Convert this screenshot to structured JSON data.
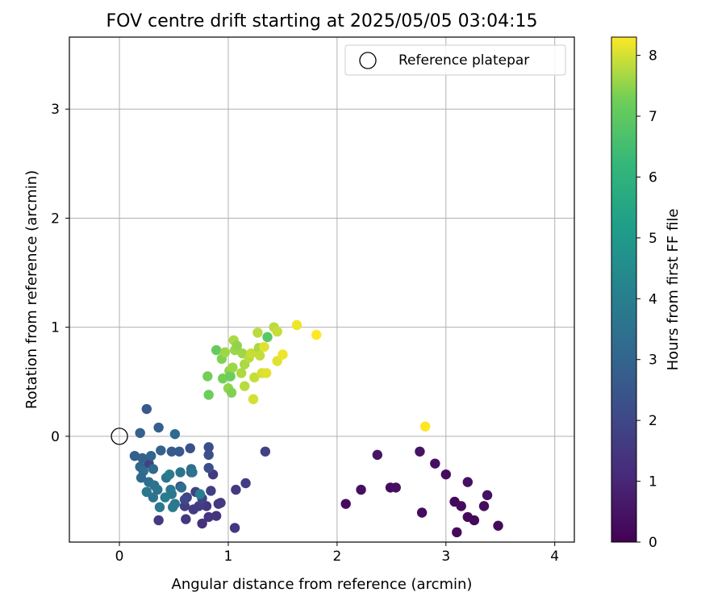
{
  "chart_data": {
    "type": "scatter",
    "title": "FOV centre drift starting at 2025/05/05 03:04:15",
    "xlabel": "Angular distance from reference (arcmin)",
    "ylabel": "Rotation from reference (arcmin)",
    "xlim": [
      -0.46,
      4.18
    ],
    "ylim": [
      -0.97,
      3.66
    ],
    "xticks": [
      "0",
      "1",
      "2",
      "3",
      "4"
    ],
    "yticks": [
      "0",
      "1",
      "2",
      "3"
    ],
    "grid": true,
    "legend": {
      "position": "top-right",
      "entries": [
        "Reference platepar"
      ]
    },
    "reference_point": {
      "x": 0,
      "y": 0
    },
    "colorbar": {
      "label": "Hours from first FF file",
      "range": [
        0,
        8.3
      ],
      "ticks": [
        "0",
        "1",
        "2",
        "3",
        "4",
        "5",
        "6",
        "7",
        "8"
      ],
      "colormap": "viridis"
    },
    "series": [
      {
        "points": [
          {
            "x": 2.08,
            "y": -0.62,
            "c": 0.3
          },
          {
            "x": 2.22,
            "y": -0.49,
            "c": 0.4
          },
          {
            "x": 2.37,
            "y": -0.17,
            "c": 0.5
          },
          {
            "x": 2.49,
            "y": -0.47,
            "c": 0.3
          },
          {
            "x": 2.54,
            "y": -0.47,
            "c": 0.4
          },
          {
            "x": 2.76,
            "y": -0.14,
            "c": 0.5
          },
          {
            "x": 2.78,
            "y": -0.7,
            "c": 0.3
          },
          {
            "x": 2.9,
            "y": -0.25,
            "c": 0.4
          },
          {
            "x": 3.0,
            "y": -0.35,
            "c": 0.3
          },
          {
            "x": 3.08,
            "y": -0.6,
            "c": 0.2
          },
          {
            "x": 3.1,
            "y": -0.88,
            "c": 0.2
          },
          {
            "x": 3.14,
            "y": -0.64,
            "c": 0.3
          },
          {
            "x": 3.2,
            "y": -0.42,
            "c": 0.4
          },
          {
            "x": 3.2,
            "y": -0.74,
            "c": 0.2
          },
          {
            "x": 3.26,
            "y": -0.77,
            "c": 0.2
          },
          {
            "x": 3.35,
            "y": -0.64,
            "c": 0.3
          },
          {
            "x": 3.38,
            "y": -0.54,
            "c": 0.4
          },
          {
            "x": 3.48,
            "y": -0.82,
            "c": 0.2
          },
          {
            "x": 1.34,
            "y": -0.14,
            "c": 1.8
          },
          {
            "x": 1.06,
            "y": -0.84,
            "c": 1.5
          },
          {
            "x": 1.07,
            "y": -0.49,
            "c": 1.6
          },
          {
            "x": 1.16,
            "y": -0.43,
            "c": 1.7
          },
          {
            "x": 0.91,
            "y": -0.62,
            "c": 1.5
          },
          {
            "x": 0.93,
            "y": -0.61,
            "c": 1.6
          },
          {
            "x": 0.89,
            "y": -0.73,
            "c": 1.4
          },
          {
            "x": 0.86,
            "y": -0.35,
            "c": 1.6
          },
          {
            "x": 0.84,
            "y": -0.5,
            "c": 1.7
          },
          {
            "x": 0.82,
            "y": -0.74,
            "c": 1.4
          },
          {
            "x": 0.8,
            "y": -0.64,
            "c": 1.5
          },
          {
            "x": 0.76,
            "y": -0.8,
            "c": 1.3
          },
          {
            "x": 0.73,
            "y": -0.64,
            "c": 1.7
          },
          {
            "x": 0.7,
            "y": -0.51,
            "c": 1.8
          },
          {
            "x": 0.68,
            "y": -0.67,
            "c": 1.6
          },
          {
            "x": 0.66,
            "y": -0.33,
            "c": 2.0
          },
          {
            "x": 0.65,
            "y": -0.11,
            "c": 2.3
          },
          {
            "x": 0.62,
            "y": -0.56,
            "c": 1.9
          },
          {
            "x": 0.61,
            "y": -0.76,
            "c": 1.5
          },
          {
            "x": 0.6,
            "y": -0.64,
            "c": 1.7
          },
          {
            "x": 0.56,
            "y": -0.46,
            "c": 2.0
          },
          {
            "x": 0.36,
            "y": -0.77,
            "c": 1.6
          },
          {
            "x": 0.27,
            "y": -0.25,
            "c": 1.8
          },
          {
            "x": 0.82,
            "y": -0.1,
            "c": 2.2
          },
          {
            "x": 0.82,
            "y": -0.17,
            "c": 2.3
          },
          {
            "x": 0.82,
            "y": -0.29,
            "c": 2.2
          },
          {
            "x": 0.76,
            "y": -0.57,
            "c": 1.9
          },
          {
            "x": 0.6,
            "y": -0.58,
            "c": 2.0
          },
          {
            "x": 0.25,
            "y": 0.25,
            "c": 2.6
          },
          {
            "x": 0.36,
            "y": 0.08,
            "c": 2.8
          },
          {
            "x": 0.19,
            "y": 0.03,
            "c": 2.9
          },
          {
            "x": 0.51,
            "y": 0.02,
            "c": 3.2
          },
          {
            "x": 0.38,
            "y": -0.13,
            "c": 2.9
          },
          {
            "x": 0.48,
            "y": -0.14,
            "c": 2.7
          },
          {
            "x": 0.55,
            "y": -0.14,
            "c": 2.6
          },
          {
            "x": 0.14,
            "y": -0.18,
            "c": 2.8
          },
          {
            "x": 0.21,
            "y": -0.2,
            "c": 2.9
          },
          {
            "x": 0.29,
            "y": -0.18,
            "c": 3.0
          },
          {
            "x": 0.19,
            "y": -0.28,
            "c": 3.0
          },
          {
            "x": 0.22,
            "y": -0.32,
            "c": 3.3
          },
          {
            "x": 0.31,
            "y": -0.3,
            "c": 3.1
          },
          {
            "x": 0.2,
            "y": -0.38,
            "c": 3.2
          },
          {
            "x": 0.27,
            "y": -0.42,
            "c": 3.4
          },
          {
            "x": 0.32,
            "y": -0.45,
            "c": 3.5
          },
          {
            "x": 0.25,
            "y": -0.51,
            "c": 3.7
          },
          {
            "x": 0.31,
            "y": -0.56,
            "c": 3.6
          },
          {
            "x": 0.37,
            "y": -0.65,
            "c": 3.8
          },
          {
            "x": 0.43,
            "y": -0.38,
            "c": 3.6
          },
          {
            "x": 0.46,
            "y": -0.35,
            "c": 3.9
          },
          {
            "x": 0.47,
            "y": -0.49,
            "c": 3.8
          },
          {
            "x": 0.48,
            "y": -0.53,
            "c": 3.7
          },
          {
            "x": 0.49,
            "y": -0.65,
            "c": 3.9
          },
          {
            "x": 0.51,
            "y": -0.62,
            "c": 3.8
          },
          {
            "x": 0.56,
            "y": -0.33,
            "c": 3.6
          },
          {
            "x": 0.66,
            "y": -0.3,
            "c": 3.4
          },
          {
            "x": 0.74,
            "y": -0.53,
            "c": 4.0
          },
          {
            "x": 0.67,
            "y": -0.33,
            "c": 3.5
          },
          {
            "x": 0.57,
            "y": -0.47,
            "c": 3.3
          },
          {
            "x": 0.42,
            "y": -0.56,
            "c": 3.9
          },
          {
            "x": 0.35,
            "y": -0.49,
            "c": 3.6
          },
          {
            "x": 0.82,
            "y": 0.38,
            "c": 7.2
          },
          {
            "x": 0.81,
            "y": 0.55,
            "c": 7.3
          },
          {
            "x": 0.89,
            "y": 0.79,
            "c": 7.1
          },
          {
            "x": 0.95,
            "y": 0.53,
            "c": 7.3
          },
          {
            "x": 0.94,
            "y": 0.71,
            "c": 7.4
          },
          {
            "x": 0.97,
            "y": 0.77,
            "c": 7.6
          },
          {
            "x": 1.0,
            "y": 0.44,
            "c": 7.5
          },
          {
            "x": 1.01,
            "y": 0.6,
            "c": 7.5
          },
          {
            "x": 1.02,
            "y": 0.55,
            "c": 7.2
          },
          {
            "x": 1.03,
            "y": 0.4,
            "c": 7.4
          },
          {
            "x": 1.04,
            "y": 0.63,
            "c": 7.6
          },
          {
            "x": 1.05,
            "y": 0.88,
            "c": 7.7
          },
          {
            "x": 1.06,
            "y": 0.79,
            "c": 7.6
          },
          {
            "x": 1.08,
            "y": 0.83,
            "c": 7.5
          },
          {
            "x": 1.12,
            "y": 0.58,
            "c": 7.7
          },
          {
            "x": 1.13,
            "y": 0.76,
            "c": 7.6
          },
          {
            "x": 1.15,
            "y": 0.46,
            "c": 7.8
          },
          {
            "x": 1.15,
            "y": 0.66,
            "c": 7.7
          },
          {
            "x": 1.19,
            "y": 0.72,
            "c": 7.8
          },
          {
            "x": 1.21,
            "y": 0.76,
            "c": 7.9
          },
          {
            "x": 1.23,
            "y": 0.34,
            "c": 8.0
          },
          {
            "x": 1.24,
            "y": 0.54,
            "c": 7.9
          },
          {
            "x": 1.27,
            "y": 0.95,
            "c": 7.8
          },
          {
            "x": 1.28,
            "y": 0.81,
            "c": 7.7
          },
          {
            "x": 1.29,
            "y": 0.74,
            "c": 7.9
          },
          {
            "x": 1.31,
            "y": 0.58,
            "c": 8.0
          },
          {
            "x": 1.33,
            "y": 0.82,
            "c": 8.1
          },
          {
            "x": 1.35,
            "y": 0.58,
            "c": 8.1
          },
          {
            "x": 1.36,
            "y": 0.91,
            "c": 6.9
          },
          {
            "x": 1.42,
            "y": 1.0,
            "c": 7.8
          },
          {
            "x": 1.45,
            "y": 0.96,
            "c": 7.9
          },
          {
            "x": 1.45,
            "y": 0.69,
            "c": 8.1
          },
          {
            "x": 1.5,
            "y": 0.75,
            "c": 8.2
          },
          {
            "x": 1.63,
            "y": 1.02,
            "c": 8.2
          },
          {
            "x": 1.81,
            "y": 0.93,
            "c": 8.3
          },
          {
            "x": 2.81,
            "y": 0.09,
            "c": 8.3
          }
        ]
      }
    ]
  }
}
